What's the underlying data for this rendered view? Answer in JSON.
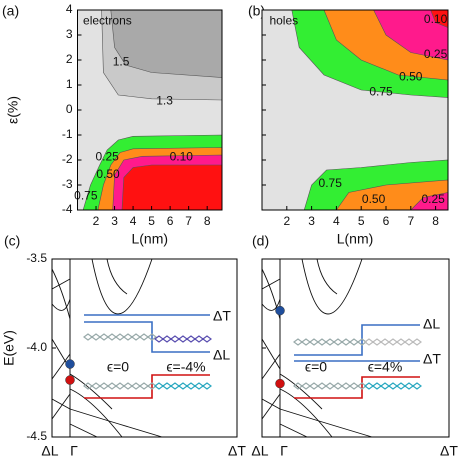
{
  "chart_data": [
    {
      "type": "contour",
      "panel_label": "(a)",
      "annotation": "electrons",
      "x_label": "L(nm)",
      "y_label": "ε(%)",
      "xlim": [
        1,
        8.8
      ],
      "xticks": [
        2,
        3,
        4,
        5,
        6,
        7,
        8
      ],
      "ylim": [
        -4,
        4
      ],
      "yticks": [
        -4,
        -3,
        -2,
        -1,
        0,
        1,
        2,
        3,
        4
      ],
      "values": [
        1.3,
        1.5,
        0.75,
        0.5,
        0.25,
        0.1
      ],
      "value_labels": [
        "1.3",
        "1.5",
        "0.75",
        "0.50",
        "0.25",
        "0.10"
      ],
      "colors": [
        "#c9c9c9",
        "#a9a9a9",
        "#33ee33",
        "#ff8c1a",
        "#ff1a8c",
        "#ff1111"
      ]
    },
    {
      "type": "contour",
      "panel_label": "(b)",
      "annotation": "holes",
      "x_label": "L(nm)",
      "xlim": [
        1,
        8.5
      ],
      "xticks": [
        2,
        3,
        4,
        5,
        6,
        7,
        8
      ],
      "ylim": [
        -4,
        4
      ],
      "yticks": [
        -4,
        -3,
        -2,
        -1,
        0,
        1,
        2,
        3,
        4
      ],
      "values": [
        0.75,
        0.5,
        0.25,
        0.1,
        0.75,
        0.5,
        0.25
      ],
      "value_labels": [
        "0.75",
        "0.50",
        "0.25",
        "0.10",
        "0.75",
        "0.50",
        "0.25"
      ],
      "colors": [
        "#33ee33",
        "#ff8c1a",
        "#ff1a8c",
        "#ff1111",
        "#33ee33",
        "#ff8c1a",
        "#ff1a8c"
      ]
    },
    {
      "type": "bands",
      "panel_label": "(c)",
      "y_label": "E(eV)",
      "x_labels": [
        "ΔL",
        "Γ",
        "ΔT"
      ],
      "ylim": [
        -4.5,
        -3.5
      ],
      "yticks": [
        {
          "value": -3.5,
          "label": "-3.5"
        },
        {
          "value": -4.0,
          "label": "-4.0"
        },
        {
          "value": -4.5,
          "label": "-4.5"
        }
      ],
      "points": {
        "values": [
          -4.09,
          -4.18
        ],
        "colors": [
          "#1f4e9c",
          "#d01010"
        ]
      },
      "inset": [
        "ΔT",
        "ΔL",
        "ϵ=0",
        "ϵ=-4%"
      ]
    },
    {
      "type": "bands",
      "panel_label": "(d)",
      "x_labels": [
        "ΔL",
        "Γ",
        "ΔT"
      ],
      "ylim": [
        -4.5,
        -3.5
      ],
      "yticks": [
        -4.5,
        -4,
        -3.5
      ],
      "points": {
        "values": [
          -3.79,
          -4.2
        ],
        "colors": [
          "#1f4e9c",
          "#d01010"
        ]
      },
      "inset": [
        "ΔL",
        "ΔT",
        "ϵ=0",
        "ϵ=4%"
      ]
    }
  ]
}
